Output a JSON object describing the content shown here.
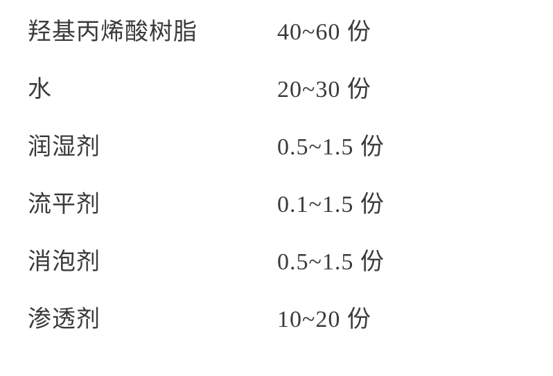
{
  "font_family": "SimSun",
  "font_size_pt": 26,
  "text_color": "#3a3a3a",
  "background_color": "#ffffff",
  "rows": [
    {
      "label": "羟基丙烯酸树脂",
      "value": "40~60 份"
    },
    {
      "label": "水",
      "value": "20~30 份"
    },
    {
      "label": "润湿剂",
      "value": "0.5~1.5 份"
    },
    {
      "label": "流平剂",
      "value": "0.1~1.5 份"
    },
    {
      "label": "消泡剂",
      "value": "0.5~1.5 份"
    },
    {
      "label": "渗透剂",
      "value": "10~20 份"
    }
  ]
}
